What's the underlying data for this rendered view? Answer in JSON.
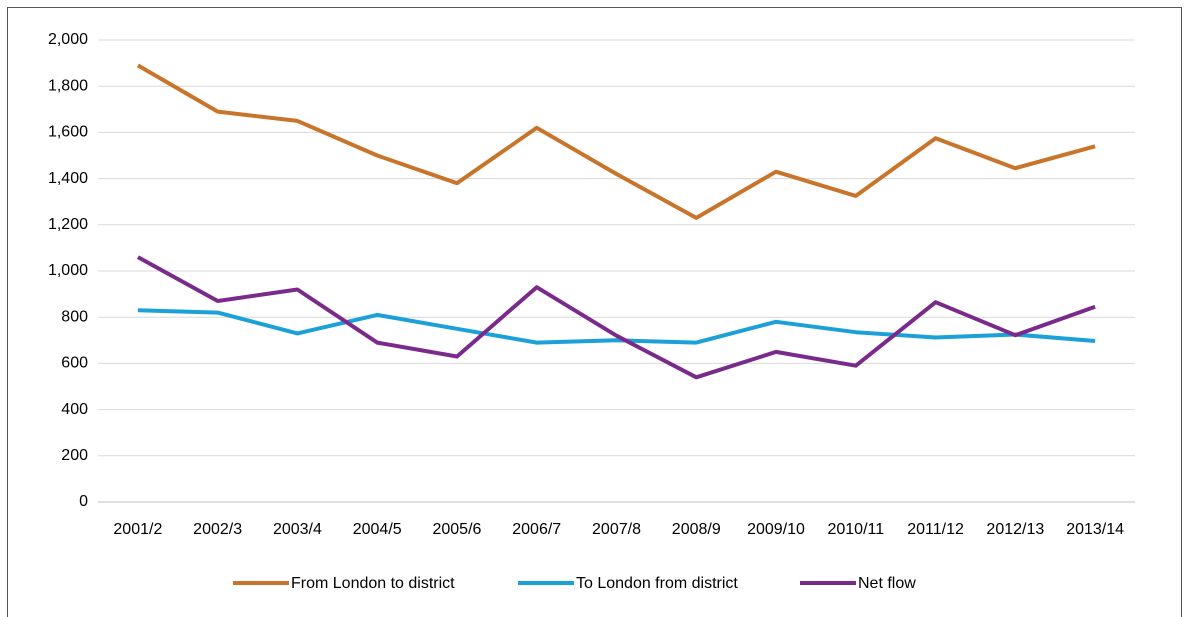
{
  "chart_data": {
    "type": "line",
    "categories": [
      "2001/2",
      "2002/3",
      "2003/4",
      "2004/5",
      "2005/6",
      "2006/7",
      "2007/8",
      "2008/9",
      "2009/10",
      "2010/11",
      "2011/12",
      "2012/13",
      "2013/14"
    ],
    "series": [
      {
        "name": "From London to district",
        "color": "#c9742b",
        "values": [
          1890,
          1690,
          1650,
          1500,
          1380,
          1620,
          1420,
          1230,
          1430,
          1325,
          1575,
          1445,
          1540
        ]
      },
      {
        "name": "To London from district",
        "color": "#1ba1d8",
        "values": [
          830,
          820,
          730,
          810,
          750,
          690,
          700,
          690,
          780,
          735,
          712,
          725,
          697
        ]
      },
      {
        "name": "Net flow",
        "color": "#7a2a8a",
        "values": [
          1060,
          870,
          920,
          690,
          630,
          930,
          720,
          540,
          650,
          590,
          865,
          722,
          845
        ]
      }
    ],
    "ylim": [
      0,
      2000
    ],
    "yticks": [
      0,
      200,
      400,
      600,
      800,
      {
        "value": 1000,
        "label": "1,000"
      },
      {
        "value": 1200,
        "label": "1,200"
      },
      {
        "value": 1400,
        "label": "1,400"
      },
      {
        "value": 1600,
        "label": "1,600"
      },
      {
        "value": 1800,
        "label": "1,800"
      },
      {
        "value": 2000,
        "label": "2,000"
      }
    ],
    "grid": true
  }
}
